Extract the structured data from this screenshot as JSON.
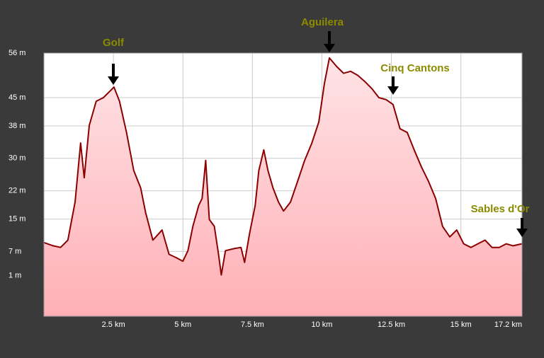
{
  "chart_data": {
    "type": "area",
    "x": [
      0,
      0.33,
      0.6,
      0.86,
      1.12,
      1.32,
      1.45,
      1.63,
      1.88,
      2.14,
      2.39,
      2.52,
      2.72,
      2.97,
      3.23,
      3.48,
      3.66,
      3.92,
      4.25,
      4.5,
      4.75,
      5.0,
      5.18,
      5.36,
      5.57,
      5.69,
      5.82,
      5.95,
      6.13,
      6.28,
      6.38,
      6.53,
      6.84,
      7.09,
      7.22,
      7.4,
      7.6,
      7.73,
      7.91,
      8.06,
      8.24,
      8.44,
      8.62,
      8.87,
      9.13,
      9.38,
      9.64,
      9.89,
      10.09,
      10.27,
      10.53,
      10.78,
      11.03,
      11.29,
      11.54,
      11.8,
      12.05,
      12.31,
      12.56,
      12.81,
      13.07,
      13.32,
      13.58,
      13.83,
      14.09,
      14.34,
      14.6,
      14.85,
      15.1,
      15.36,
      15.61,
      15.87,
      16.12,
      16.38,
      16.63,
      16.88,
      17.19
    ],
    "values": [
      9.2,
      8.4,
      8,
      9.8,
      19.2,
      33.8,
      25.2,
      38.1,
      44.1,
      45,
      46.7,
      47.6,
      44.1,
      36.4,
      27,
      22.7,
      16.6,
      9.8,
      12.3,
      6.3,
      5.5,
      4.6,
      7.2,
      13.2,
      18.4,
      20.1,
      29.5,
      14.9,
      13.2,
      6.3,
      1.2,
      7.2,
      7.7,
      8,
      4.3,
      11.5,
      18.4,
      27,
      32.1,
      27,
      22.7,
      19.2,
      17,
      19.2,
      24.4,
      29.5,
      33.8,
      39,
      48.5,
      54.8,
      52.7,
      51,
      51.5,
      50.5,
      49,
      47.2,
      45,
      44.5,
      43.3,
      37.3,
      36.4,
      32.1,
      27.9,
      24.4,
      20.1,
      13.2,
      10.6,
      12.3,
      8.9,
      8,
      8.9,
      9.8,
      8,
      8,
      8.9,
      8.4,
      8.9
    ],
    "color": "#8b0000",
    "xlim": [
      0,
      17.2
    ],
    "xticks": [
      {
        "value": 2.5,
        "label": "2.5 km"
      },
      {
        "value": 5,
        "label": "5 km"
      },
      {
        "value": 7.5,
        "label": "7.5 km"
      },
      {
        "value": 10,
        "label": "10 km"
      },
      {
        "value": 12.5,
        "label": "12.5 km"
      },
      {
        "value": 15,
        "label": "15 km"
      },
      {
        "value": 17.2,
        "label": "17.2 km"
      }
    ],
    "ylim": [
      -9,
      56
    ],
    "yticks": [
      {
        "value": 56,
        "label": "56 m"
      },
      {
        "value": 45,
        "label": "45 m"
      },
      {
        "value": 38,
        "label": "38 m"
      },
      {
        "value": 30,
        "label": "30 m"
      },
      {
        "value": 22,
        "label": "22 m"
      },
      {
        "value": 15,
        "label": "15 m"
      },
      {
        "value": 7,
        "label": "7 m"
      },
      {
        "value": 1,
        "label": "1 m"
      }
    ],
    "grid": true,
    "annotations": [
      "Golf",
      "Aguilera",
      "Cinq Cantons",
      "Sables d'Or"
    ]
  }
}
